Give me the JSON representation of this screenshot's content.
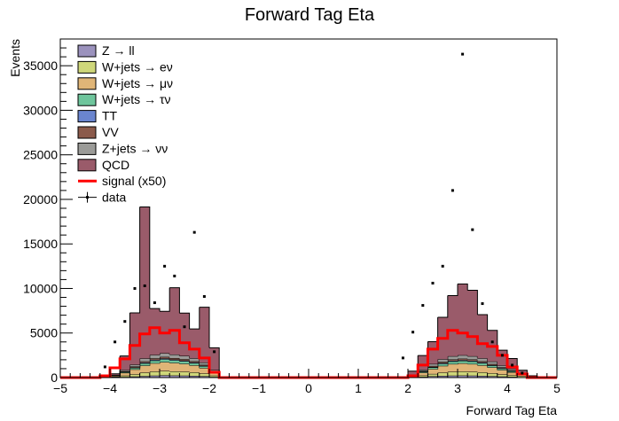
{
  "chart_data": {
    "type": "area",
    "title": "Forward Tag Eta",
    "xlabel": "Forward Tag Eta",
    "ylabel": "Events",
    "xlim": [
      -5,
      5
    ],
    "ylim": [
      0,
      38000
    ],
    "x_ticks": [
      -5,
      -4,
      -3,
      -2,
      -1,
      0,
      1,
      2,
      3,
      4,
      5
    ],
    "y_ticks": [
      0,
      5000,
      10000,
      15000,
      20000,
      25000,
      30000,
      35000
    ],
    "bin_edges": [
      -5.0,
      -4.8,
      -4.6,
      -4.4,
      -4.2,
      -4.0,
      -3.8,
      -3.6,
      -3.4,
      -3.2,
      -3.0,
      -2.8,
      -2.6,
      -2.4,
      -2.2,
      -2.0,
      -1.8,
      -1.6,
      -1.4,
      -1.2,
      -1.0,
      -0.8,
      -0.6,
      -0.4,
      -0.2,
      0.0,
      0.2,
      0.4,
      0.6,
      0.8,
      1.0,
      1.2,
      1.4,
      1.6,
      1.8,
      2.0,
      2.2,
      2.4,
      2.6,
      2.8,
      3.0,
      3.2,
      3.4,
      3.6,
      3.8,
      4.0,
      4.2,
      4.4,
      4.6,
      4.8,
      5.0
    ],
    "stack": [
      {
        "name": "Z → ll",
        "color": "#9b92bd",
        "values": [
          0,
          0,
          0,
          0,
          0,
          40,
          80,
          120,
          180,
          220,
          260,
          240,
          230,
          200,
          160,
          80,
          0,
          0,
          0,
          0,
          0,
          0,
          0,
          0,
          0,
          0,
          0,
          0,
          0,
          0,
          0,
          0,
          0,
          0,
          0,
          30,
          90,
          150,
          200,
          230,
          240,
          230,
          200,
          160,
          120,
          90,
          50,
          20,
          0,
          0
        ]
      },
      {
        "name": "W+jets → eν",
        "color": "#cfd77a",
        "values": [
          0,
          0,
          0,
          0,
          0,
          60,
          150,
          250,
          380,
          450,
          480,
          460,
          430,
          380,
          300,
          150,
          0,
          0,
          0,
          0,
          0,
          0,
          0,
          0,
          0,
          0,
          0,
          0,
          0,
          0,
          0,
          0,
          0,
          0,
          0,
          50,
          150,
          260,
          360,
          420,
          440,
          420,
          380,
          320,
          240,
          170,
          100,
          40,
          0,
          0
        ]
      },
      {
        "name": "W+jets → μν",
        "color": "#e0b577",
        "values": [
          0,
          0,
          0,
          0,
          0,
          100,
          300,
          550,
          800,
          950,
          1000,
          950,
          900,
          800,
          620,
          300,
          0,
          0,
          0,
          0,
          0,
          0,
          0,
          0,
          0,
          0,
          0,
          0,
          0,
          0,
          0,
          0,
          0,
          0,
          0,
          100,
          320,
          560,
          760,
          880,
          920,
          880,
          800,
          660,
          500,
          340,
          180,
          70,
          0,
          0
        ]
      },
      {
        "name": "W+jets → τν",
        "color": "#6ec59c",
        "values": [
          0,
          0,
          0,
          0,
          0,
          30,
          90,
          170,
          250,
          300,
          320,
          300,
          280,
          250,
          200,
          100,
          0,
          0,
          0,
          0,
          0,
          0,
          0,
          0,
          0,
          0,
          0,
          0,
          0,
          0,
          0,
          0,
          0,
          0,
          0,
          30,
          100,
          180,
          240,
          280,
          290,
          280,
          250,
          210,
          160,
          110,
          60,
          20,
          0,
          0
        ]
      },
      {
        "name": "TT",
        "color": "#6a85cf",
        "values": [
          0,
          0,
          0,
          0,
          0,
          10,
          30,
          50,
          70,
          80,
          90,
          80,
          80,
          70,
          50,
          30,
          0,
          0,
          0,
          0,
          0,
          0,
          0,
          0,
          0,
          0,
          0,
          0,
          0,
          0,
          0,
          0,
          0,
          0,
          0,
          10,
          30,
          50,
          70,
          80,
          80,
          80,
          70,
          60,
          50,
          30,
          20,
          10,
          0,
          0
        ]
      },
      {
        "name": "VV",
        "color": "#8b5a4b",
        "values": [
          0,
          0,
          0,
          0,
          0,
          20,
          60,
          100,
          140,
          160,
          170,
          160,
          150,
          130,
          100,
          60,
          0,
          0,
          0,
          0,
          0,
          0,
          0,
          0,
          0,
          0,
          0,
          0,
          0,
          0,
          0,
          0,
          0,
          0,
          0,
          20,
          60,
          100,
          130,
          150,
          160,
          150,
          130,
          110,
          90,
          60,
          30,
          10,
          0,
          0
        ]
      },
      {
        "name": "Z+jets → νν",
        "color": "#9b9b98",
        "values": [
          0,
          0,
          0,
          0,
          0,
          40,
          120,
          220,
          330,
          390,
          410,
          390,
          370,
          330,
          260,
          130,
          0,
          0,
          0,
          0,
          0,
          0,
          0,
          0,
          0,
          0,
          0,
          0,
          0,
          0,
          0,
          0,
          0,
          0,
          0,
          40,
          130,
          230,
          310,
          360,
          380,
          360,
          330,
          280,
          210,
          140,
          80,
          30,
          0,
          0
        ]
      },
      {
        "name": "QCD",
        "color": "#9a5b6a",
        "values": [
          0,
          0,
          0,
          0,
          0,
          120,
          1600,
          5800,
          17000,
          5200,
          4700,
          7500,
          4800,
          3300,
          6200,
          2500,
          0,
          0,
          0,
          0,
          0,
          0,
          0,
          0,
          0,
          0,
          0,
          0,
          0,
          0,
          0,
          0,
          0,
          0,
          0,
          440,
          1600,
          2500,
          4700,
          6800,
          8000,
          7400,
          4900,
          3500,
          1700,
          1200,
          300,
          0,
          0,
          0
        ]
      }
    ],
    "signal": {
      "name": "signal (x50)",
      "color": "#ff0000",
      "values": [
        0,
        0,
        0,
        0,
        200,
        1100,
        2100,
        3600,
        4900,
        5600,
        5000,
        5300,
        3900,
        3200,
        2200,
        600,
        0,
        0,
        0,
        0,
        0,
        0,
        0,
        0,
        0,
        0,
        0,
        0,
        0,
        0,
        0,
        0,
        0,
        0,
        0,
        200,
        1400,
        3200,
        4400,
        5300,
        5000,
        4600,
        3800,
        3500,
        2500,
        1200,
        400,
        0,
        0,
        0
      ]
    },
    "data_points": {
      "name": "data",
      "color": "#000000",
      "x": [
        -4.1,
        -3.9,
        -3.7,
        -3.5,
        -3.3,
        -3.1,
        -2.9,
        -2.7,
        -2.5,
        -2.3,
        -2.1,
        -1.9,
        1.9,
        2.1,
        2.3,
        2.5,
        2.7,
        2.9,
        3.1,
        3.3,
        3.5,
        3.7,
        3.9,
        4.1,
        4.3
      ],
      "y": [
        1200,
        4000,
        6300,
        10000,
        10300,
        8400,
        12500,
        11400,
        5700,
        16300,
        9100,
        2900,
        2200,
        5100,
        8100,
        10600,
        12500,
        21000,
        36300,
        16600,
        8300,
        4000,
        2500,
        1400,
        500
      ]
    },
    "legend": {
      "position": "top-left",
      "entries": [
        {
          "label": "Z → ll",
          "kind": "box",
          "color": "#9b92bd"
        },
        {
          "label": "W+jets → eν",
          "kind": "box",
          "color": "#cfd77a"
        },
        {
          "label": "W+jets → μν",
          "kind": "box",
          "color": "#e0b577"
        },
        {
          "label": "W+jets → τν",
          "kind": "box",
          "color": "#6ec59c"
        },
        {
          "label": "TT",
          "kind": "box",
          "color": "#6a85cf"
        },
        {
          "label": "VV",
          "kind": "box",
          "color": "#8b5a4b"
        },
        {
          "label": "Z+jets → νν",
          "kind": "box",
          "color": "#9b9b98"
        },
        {
          "label": "QCD",
          "kind": "box",
          "color": "#9a5b6a"
        },
        {
          "label": "signal (x50)",
          "kind": "line",
          "color": "#ff0000"
        },
        {
          "label": "data",
          "kind": "marker",
          "color": "#000000"
        }
      ]
    }
  }
}
